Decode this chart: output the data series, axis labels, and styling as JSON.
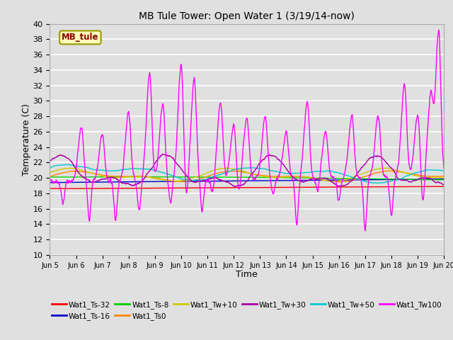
{
  "title": "MB Tule Tower: Open Water 1 (3/19/14-now)",
  "xlabel": "Time",
  "ylabel": "Temperature (C)",
  "xlim": [
    0,
    15
  ],
  "ylim": [
    10,
    40
  ],
  "yticks": [
    10,
    12,
    14,
    16,
    18,
    20,
    22,
    24,
    26,
    28,
    30,
    32,
    34,
    36,
    38,
    40
  ],
  "xtick_labels": [
    "Jun 5",
    "Jun 6",
    "Jun 7",
    "Jun 8",
    "Jun 9",
    "Jun 10",
    "Jun 11",
    "Jun 12",
    "Jun 13",
    "Jun 14",
    "Jun 15",
    "Jun 16",
    "Jun 17",
    "Jun 18",
    "Jun 19",
    "Jun 20"
  ],
  "bg_color": "#e0e0e0",
  "grid_color": "#ffffff",
  "series": {
    "Wat1_Ts-32": {
      "color": "#ff0000"
    },
    "Wat1_Ts-16": {
      "color": "#0000cc"
    },
    "Wat1_Ts-8": {
      "color": "#00cc00"
    },
    "Wat1_Ts0": {
      "color": "#ff8800"
    },
    "Wat1_Tw+10": {
      "color": "#cccc00"
    },
    "Wat1_Tw+30": {
      "color": "#aa00aa"
    },
    "Wat1_Tw+50": {
      "color": "#00cccc"
    },
    "Wat1_Tw100": {
      "color": "#ff00ff"
    }
  },
  "annotation": {
    "text": "MB_tule",
    "facecolor": "#ffffbb",
    "edgecolor": "#999900",
    "textcolor": "#880000"
  },
  "legend_row1": [
    "Wat1_Ts-32",
    "Wat1_Ts-16",
    "Wat1_Ts-8",
    "Wat1_Ts0",
    "Wat1_Tw+10",
    "Wat1_Tw+30"
  ],
  "legend_row2": [
    "Wat1_Tw+50",
    "Wat1_Tw100"
  ]
}
